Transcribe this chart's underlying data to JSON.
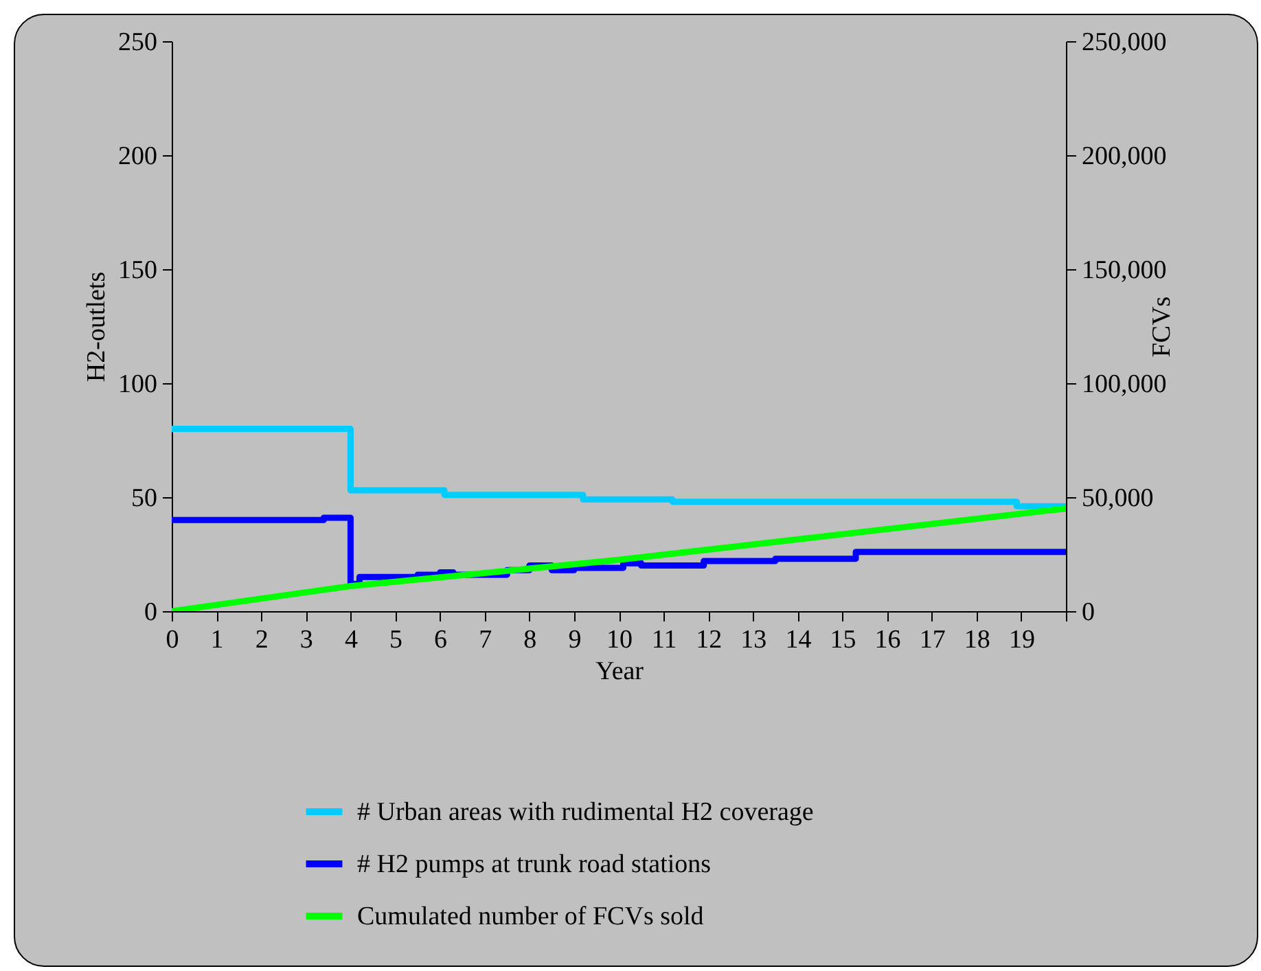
{
  "chart_data": {
    "type": "step",
    "xlabel": "Year",
    "ylabel": "H2-outlets",
    "y2label": "FCVs",
    "xlim": [
      0,
      20
    ],
    "xticks": [
      0,
      1,
      2,
      3,
      4,
      5,
      6,
      7,
      8,
      9,
      10,
      11,
      12,
      13,
      14,
      15,
      16,
      17,
      18,
      19,
      {
        "value": 20,
        "label": null
      }
    ],
    "ylim": [
      0,
      250
    ],
    "yticks": [
      0,
      50,
      100,
      150,
      200,
      250
    ],
    "y2lim": [
      0,
      250000
    ],
    "y2ticks": [
      {
        "value": 0,
        "label": "0"
      },
      {
        "value": 50000,
        "label": "50,000"
      },
      {
        "value": 100000,
        "label": "100,000"
      },
      {
        "value": 150000,
        "label": "150,000"
      },
      {
        "value": 200000,
        "label": "200,000"
      },
      {
        "value": 250000,
        "label": "250,000"
      }
    ],
    "legend": "bottom",
    "grid": false,
    "series": [
      {
        "name": "# Urban areas with rudimental H2 coverage",
        "color": "#00ccff",
        "x": [
          0,
          4,
          6.1,
          9.2,
          11.2,
          18.9,
          20
        ],
        "values": [
          80,
          53,
          51,
          49,
          48,
          46,
          46
        ]
      },
      {
        "name": "# H2 pumps at trunk road stations",
        "color": "#0000ff",
        "x": [
          0,
          3.4,
          4,
          4.2,
          5.5,
          6,
          6.3,
          7.5,
          8,
          8.5,
          9,
          10.1,
          10.5,
          11.9,
          13.5,
          15.3,
          20
        ],
        "values": [
          40,
          41,
          12,
          15,
          16,
          17,
          16,
          18,
          20,
          18,
          19,
          21,
          20,
          22,
          23,
          26,
          26
        ]
      },
      {
        "name": "Cumulated number of FCVs sold",
        "color": "#00ff00",
        "type": "line",
        "axis": "y2",
        "x": [
          0,
          4,
          10,
          20
        ],
        "values": [
          0,
          11000,
          22500,
          45000
        ]
      }
    ]
  }
}
